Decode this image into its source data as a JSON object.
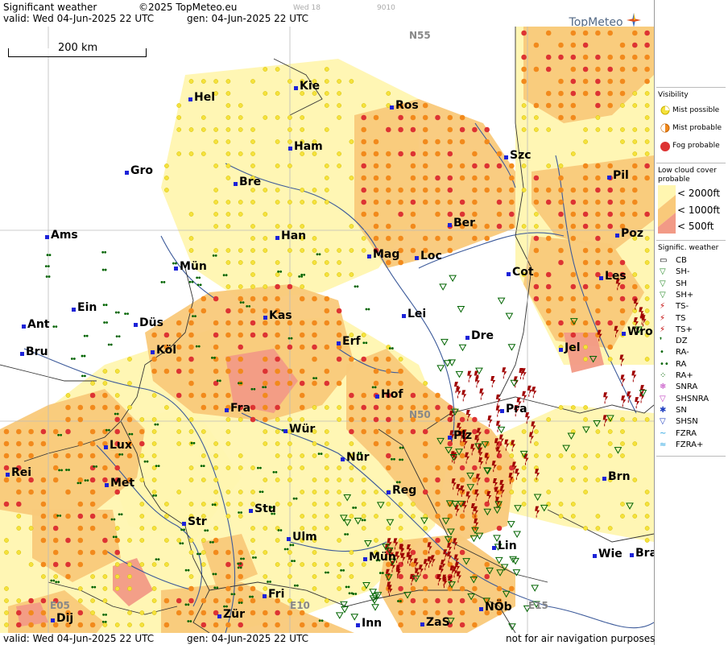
{
  "header": {
    "title": "Significant weather",
    "copyright": "©2025 TopMeteo.eu",
    "valid": "valid:  Wed  04-Jun-2025  22 UTC",
    "gen": "gen: 04-Jun-2025 22 UTC",
    "faint_a": "Wed 18",
    "faint_b": "9010",
    "logo": "TopMeteo"
  },
  "footer": {
    "valid": "valid:  Wed  04-Jun-2025  22 UTC",
    "gen": "gen: 04-Jun-2025 22 UTC",
    "note": "not for air navigation purposes"
  },
  "scale": {
    "label": "200 km"
  },
  "grid": [
    "N55",
    "N50",
    "E05",
    "E10",
    "E15"
  ],
  "colors": {
    "cloud_2000": "#fff6b0",
    "cloud_1000": "#f9c97a",
    "cloud_500": "#f29a86",
    "mist_possible": "#f5e23c",
    "mist_probable": "#f28a1c",
    "fog_probable": "#dd3333",
    "ts": "#a00000",
    "rain": "#006400",
    "river": "#3c5a9a",
    "city": "#1d23d8"
  },
  "legend": {
    "visibility": {
      "title": "Visibility",
      "items": [
        "Mist possible",
        "Mist probable",
        "Fog probable"
      ]
    },
    "cloud": {
      "title_line1": "Low cloud cover",
      "title_line2": "probable",
      "items": [
        "< 2000ft",
        "< 1000ft",
        "<   500ft"
      ]
    },
    "weather": {
      "title": "Signific. weather",
      "items": [
        "CB",
        "SH-",
        "SH",
        "SH+",
        "TS-",
        "TS",
        "TS+",
        "DZ",
        "RA-",
        "RA",
        "RA+",
        "SNRA",
        "SHSNRA",
        "SN",
        "SHSN",
        "FZRA",
        "FZRA+"
      ]
    }
  },
  "cities": [
    {
      "name": "Kie"
    },
    {
      "name": "Hel"
    },
    {
      "name": "Ros"
    },
    {
      "name": "Ham"
    },
    {
      "name": "Szc"
    },
    {
      "name": "Gro"
    },
    {
      "name": "Bre"
    },
    {
      "name": "Pil"
    },
    {
      "name": "Ber"
    },
    {
      "name": "Ams"
    },
    {
      "name": "Han"
    },
    {
      "name": "Poz"
    },
    {
      "name": "Mag"
    },
    {
      "name": "Loc"
    },
    {
      "name": "Mün"
    },
    {
      "name": "Cot"
    },
    {
      "name": "Les"
    },
    {
      "name": "Ein"
    },
    {
      "name": "Kas"
    },
    {
      "name": "Lei"
    },
    {
      "name": "Ant"
    },
    {
      "name": "Düs"
    },
    {
      "name": "Wro"
    },
    {
      "name": "Dre"
    },
    {
      "name": "Erf"
    },
    {
      "name": "Bru"
    },
    {
      "name": "Köl"
    },
    {
      "name": "Jel"
    },
    {
      "name": "Hof"
    },
    {
      "name": "Fra"
    },
    {
      "name": "Pra"
    },
    {
      "name": "Wür"
    },
    {
      "name": "Plz"
    },
    {
      "name": "Lux"
    },
    {
      "name": "Nür"
    },
    {
      "name": "Rei"
    },
    {
      "name": "Brn"
    },
    {
      "name": "Met"
    },
    {
      "name": "Reg"
    },
    {
      "name": "Stu"
    },
    {
      "name": "Str"
    },
    {
      "name": "Ulm"
    },
    {
      "name": "Lin"
    },
    {
      "name": "Wie"
    },
    {
      "name": "Bra"
    },
    {
      "name": "Mün"
    },
    {
      "name": "Fri"
    },
    {
      "name": "NÖb"
    },
    {
      "name": "Dij"
    },
    {
      "name": "Zür"
    },
    {
      "name": "Inn"
    },
    {
      "name": "ZaS"
    }
  ]
}
